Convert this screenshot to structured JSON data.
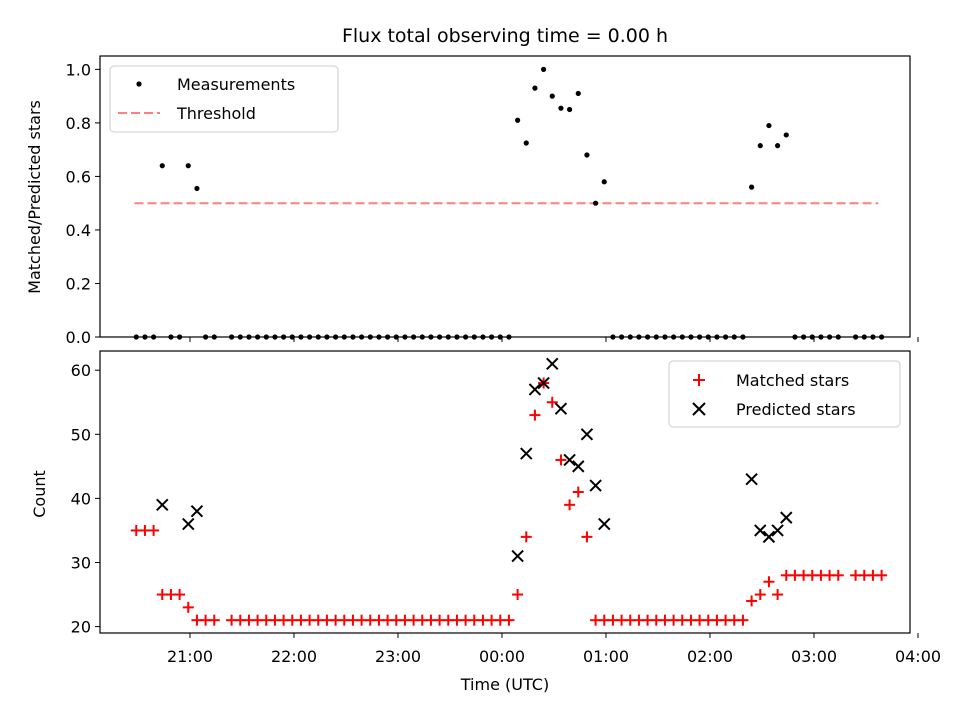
{
  "title": "Flux total observing time = 0.00 h",
  "chart_data": [
    {
      "type": "scatter",
      "ylabel": "Matched/Predicted stars",
      "ylim": [
        0,
        1.05
      ],
      "yticks": [
        "0.0",
        "0.2",
        "0.4",
        "0.6",
        "0.8",
        "1.0"
      ],
      "legend_position": "upper-left",
      "legend": [
        "Measurements",
        "Threshold"
      ],
      "threshold": {
        "value": 0.5,
        "x_start": "20:28",
        "x_end": "03:37",
        "color": "#ff7f7f"
      },
      "series": [
        {
          "name": "Measurements",
          "color": "#000000",
          "points": [
            [
              "20:29",
              0
            ],
            [
              "20:34",
              0
            ],
            [
              "20:39",
              0
            ],
            [
              "20:44",
              0.64
            ],
            [
              "20:49",
              0
            ],
            [
              "20:54",
              0
            ],
            [
              "20:59",
              0.64
            ],
            [
              "21:04",
              0.555
            ],
            [
              "21:09",
              0
            ],
            [
              "21:14",
              0
            ],
            [
              "21:24",
              0
            ],
            [
              "21:29",
              0
            ],
            [
              "21:34",
              0
            ],
            [
              "21:39",
              0
            ],
            [
              "21:44",
              0
            ],
            [
              "21:49",
              0
            ],
            [
              "21:54",
              0
            ],
            [
              "21:59",
              0
            ],
            [
              "22:04",
              0
            ],
            [
              "22:09",
              0
            ],
            [
              "22:14",
              0
            ],
            [
              "22:19",
              0
            ],
            [
              "22:24",
              0
            ],
            [
              "22:29",
              0
            ],
            [
              "22:34",
              0
            ],
            [
              "22:39",
              0
            ],
            [
              "22:44",
              0
            ],
            [
              "22:49",
              0
            ],
            [
              "22:54",
              0
            ],
            [
              "22:59",
              0
            ],
            [
              "23:04",
              0
            ],
            [
              "23:09",
              0
            ],
            [
              "23:14",
              0
            ],
            [
              "23:19",
              0
            ],
            [
              "23:24",
              0
            ],
            [
              "23:29",
              0
            ],
            [
              "23:34",
              0
            ],
            [
              "23:39",
              0
            ],
            [
              "23:44",
              0
            ],
            [
              "23:49",
              0
            ],
            [
              "23:54",
              0
            ],
            [
              "23:59",
              0
            ],
            [
              "00:04",
              0
            ],
            [
              "00:09",
              0.81
            ],
            [
              "00:14",
              0.725
            ],
            [
              "00:19",
              0.93
            ],
            [
              "00:24",
              1.0
            ],
            [
              "00:29",
              0.9
            ],
            [
              "00:34",
              0.855
            ],
            [
              "00:39",
              0.85
            ],
            [
              "00:44",
              0.91
            ],
            [
              "00:49",
              0.68
            ],
            [
              "00:54",
              0.5
            ],
            [
              "00:59",
              0.58
            ],
            [
              "01:04",
              0
            ],
            [
              "01:09",
              0
            ],
            [
              "01:14",
              0
            ],
            [
              "01:19",
              0
            ],
            [
              "01:24",
              0
            ],
            [
              "01:29",
              0
            ],
            [
              "01:34",
              0
            ],
            [
              "01:39",
              0
            ],
            [
              "01:44",
              0
            ],
            [
              "01:49",
              0
            ],
            [
              "01:54",
              0
            ],
            [
              "01:59",
              0
            ],
            [
              "02:04",
              0
            ],
            [
              "02:09",
              0
            ],
            [
              "02:14",
              0
            ],
            [
              "02:19",
              0
            ],
            [
              "02:24",
              0.56
            ],
            [
              "02:29",
              0.715
            ],
            [
              "02:34",
              0.79
            ],
            [
              "02:39",
              0.715
            ],
            [
              "02:44",
              0.755
            ],
            [
              "02:49",
              0
            ],
            [
              "02:54",
              0
            ],
            [
              "02:59",
              0
            ],
            [
              "03:04",
              0
            ],
            [
              "03:09",
              0
            ],
            [
              "03:14",
              0
            ],
            [
              "03:24",
              0
            ],
            [
              "03:29",
              0
            ],
            [
              "03:34",
              0
            ],
            [
              "03:39",
              0
            ]
          ]
        }
      ]
    },
    {
      "type": "scatter",
      "ylabel": "Count",
      "xlabel": "Time (UTC)",
      "ylim": [
        19,
        63
      ],
      "yticks": [
        "20",
        "30",
        "40",
        "50",
        "60"
      ],
      "xticks": [
        "21:00",
        "22:00",
        "23:00",
        "00:00",
        "01:00",
        "02:00",
        "03:00",
        "04:00"
      ],
      "legend_position": "upper-right",
      "legend": [
        "Matched stars",
        "Predicted stars"
      ],
      "series": [
        {
          "name": "Matched stars",
          "marker": "plus",
          "color": "#ff0000",
          "points": [
            [
              "20:29",
              35
            ],
            [
              "20:34",
              35
            ],
            [
              "20:39",
              35
            ],
            [
              "20:44",
              25
            ],
            [
              "20:49",
              25
            ],
            [
              "20:54",
              25
            ],
            [
              "20:59",
              23
            ],
            [
              "21:04",
              21
            ],
            [
              "21:09",
              21
            ],
            [
              "21:14",
              21
            ],
            [
              "21:24",
              21
            ],
            [
              "21:29",
              21
            ],
            [
              "21:34",
              21
            ],
            [
              "21:39",
              21
            ],
            [
              "21:44",
              21
            ],
            [
              "21:49",
              21
            ],
            [
              "21:54",
              21
            ],
            [
              "21:59",
              21
            ],
            [
              "22:04",
              21
            ],
            [
              "22:09",
              21
            ],
            [
              "22:14",
              21
            ],
            [
              "22:19",
              21
            ],
            [
              "22:24",
              21
            ],
            [
              "22:29",
              21
            ],
            [
              "22:34",
              21
            ],
            [
              "22:39",
              21
            ],
            [
              "22:44",
              21
            ],
            [
              "22:49",
              21
            ],
            [
              "22:54",
              21
            ],
            [
              "22:59",
              21
            ],
            [
              "23:04",
              21
            ],
            [
              "23:09",
              21
            ],
            [
              "23:14",
              21
            ],
            [
              "23:19",
              21
            ],
            [
              "23:24",
              21
            ],
            [
              "23:29",
              21
            ],
            [
              "23:34",
              21
            ],
            [
              "23:39",
              21
            ],
            [
              "23:44",
              21
            ],
            [
              "23:49",
              21
            ],
            [
              "23:54",
              21
            ],
            [
              "23:59",
              21
            ],
            [
              "00:04",
              21
            ],
            [
              "00:09",
              25
            ],
            [
              "00:14",
              34
            ],
            [
              "00:19",
              53
            ],
            [
              "00:24",
              58
            ],
            [
              "00:29",
              55
            ],
            [
              "00:34",
              46
            ],
            [
              "00:39",
              39
            ],
            [
              "00:44",
              41
            ],
            [
              "00:49",
              34
            ],
            [
              "00:54",
              21
            ],
            [
              "00:59",
              21
            ],
            [
              "01:04",
              21
            ],
            [
              "01:09",
              21
            ],
            [
              "01:14",
              21
            ],
            [
              "01:19",
              21
            ],
            [
              "01:24",
              21
            ],
            [
              "01:29",
              21
            ],
            [
              "01:34",
              21
            ],
            [
              "01:39",
              21
            ],
            [
              "01:44",
              21
            ],
            [
              "01:49",
              21
            ],
            [
              "01:54",
              21
            ],
            [
              "01:59",
              21
            ],
            [
              "02:04",
              21
            ],
            [
              "02:09",
              21
            ],
            [
              "02:14",
              21
            ],
            [
              "02:19",
              21
            ],
            [
              "02:24",
              24
            ],
            [
              "02:29",
              25
            ],
            [
              "02:34",
              27
            ],
            [
              "02:39",
              25
            ],
            [
              "02:44",
              28
            ],
            [
              "02:49",
              28
            ],
            [
              "02:54",
              28
            ],
            [
              "02:59",
              28
            ],
            [
              "03:04",
              28
            ],
            [
              "03:09",
              28
            ],
            [
              "03:14",
              28
            ],
            [
              "03:24",
              28
            ],
            [
              "03:29",
              28
            ],
            [
              "03:34",
              28
            ],
            [
              "03:39",
              28
            ]
          ]
        },
        {
          "name": "Predicted stars",
          "marker": "x",
          "color": "#000000",
          "points": [
            [
              "20:44",
              39
            ],
            [
              "20:59",
              36
            ],
            [
              "21:04",
              38
            ],
            [
              "00:09",
              31
            ],
            [
              "00:14",
              47
            ],
            [
              "00:19",
              57
            ],
            [
              "00:24",
              58
            ],
            [
              "00:29",
              61
            ],
            [
              "00:34",
              54
            ],
            [
              "00:39",
              46
            ],
            [
              "00:44",
              45
            ],
            [
              "00:49",
              50
            ],
            [
              "00:54",
              42
            ],
            [
              "00:59",
              36
            ],
            [
              "02:24",
              43
            ],
            [
              "02:29",
              35
            ],
            [
              "02:34",
              34
            ],
            [
              "02:39",
              35
            ],
            [
              "02:44",
              37
            ]
          ]
        }
      ]
    }
  ]
}
